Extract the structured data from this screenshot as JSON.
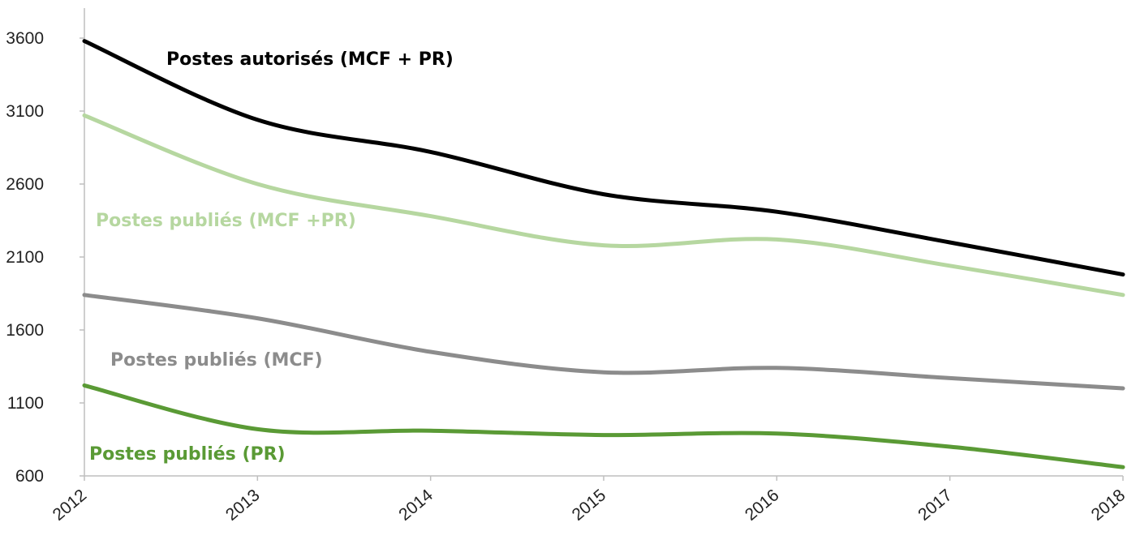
{
  "chart_data": {
    "type": "line",
    "x": [
      "2012",
      "2013",
      "2014",
      "2015",
      "2016",
      "2017",
      "2018"
    ],
    "ylim": [
      600,
      3850
    ],
    "yticks": [
      "600",
      "1100",
      "1600",
      "2100",
      "2600",
      "3100",
      "3600"
    ],
    "grid": false,
    "series": [
      {
        "name": "Postes autorisés (MCF + PR)",
        "color": "#000000",
        "values": [
          3580,
          3040,
          2820,
          2530,
          2410,
          2200,
          1980
        ]
      },
      {
        "name": "Postes publiés (MCF +PR)",
        "color": "#b6d7a0",
        "values": [
          3070,
          2600,
          2380,
          2180,
          2220,
          2040,
          1840
        ]
      },
      {
        "name": "Postes publiés (MCF)",
        "color": "#8c8c8c",
        "values": [
          1840,
          1680,
          1450,
          1310,
          1340,
          1270,
          1200
        ]
      },
      {
        "name": "Postes publiés (PR)",
        "color": "#5a9a35",
        "values": [
          1220,
          920,
          910,
          880,
          890,
          800,
          660
        ]
      }
    ]
  }
}
